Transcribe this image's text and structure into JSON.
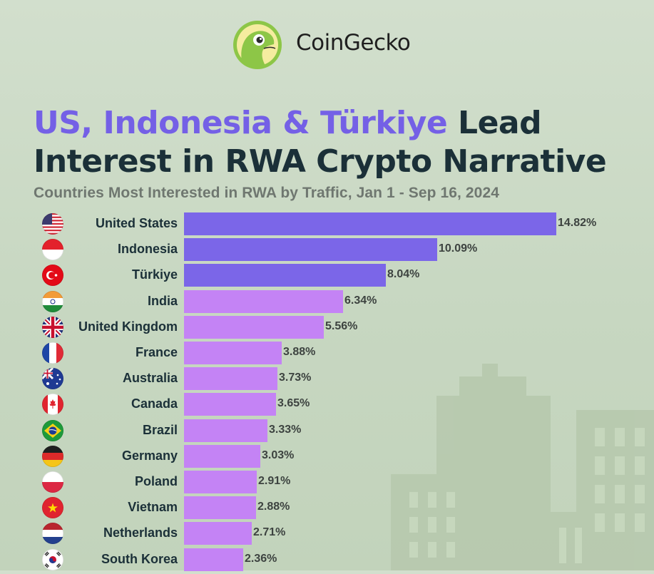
{
  "brand": {
    "name": "CoinGecko",
    "logo_icon": "gecko-logo-icon"
  },
  "title": {
    "highlight": "US, Indonesia & Türkiye",
    "rest_line1": " Lead",
    "line2": "Interest in RWA Crypto Narrative"
  },
  "subtitle": "Countries Most Interested in RWA by Traffic, Jan 1 - Sep 16, 2024",
  "colors": {
    "top3": "#7b66e8",
    "others": "#c483f5",
    "title_accent": "#7460e6",
    "title_dark": "#1b3038"
  },
  "chart_data": {
    "type": "bar",
    "orientation": "horizontal",
    "title": "US, Indonesia & Türkiye Lead Interest in RWA Crypto Narrative",
    "subtitle": "Countries Most Interested in RWA by Traffic, Jan 1 - Sep 16, 2024",
    "categories": [
      "United States",
      "Indonesia",
      "Türkiye",
      "India",
      "United Kingdom",
      "France",
      "Australia",
      "Canada",
      "Brazil",
      "Germany",
      "Poland",
      "Vietnam",
      "Netherlands",
      "South Korea"
    ],
    "values": [
      14.82,
      10.09,
      8.04,
      6.34,
      5.56,
      3.88,
      3.73,
      3.65,
      3.33,
      3.03,
      2.91,
      2.88,
      2.71,
      2.36
    ],
    "value_labels": [
      "14.82%",
      "10.09%",
      "8.04%",
      "6.34%",
      "5.56%",
      "3.88%",
      "3.73%",
      "3.65%",
      "3.33%",
      "3.03%",
      "2.91%",
      "2.88%",
      "2.71%",
      "2.36%"
    ],
    "flags": [
      "us-flag-icon",
      "indonesia-flag-icon",
      "turkiye-flag-icon",
      "india-flag-icon",
      "uk-flag-icon",
      "france-flag-icon",
      "australia-flag-icon",
      "canada-flag-icon",
      "brazil-flag-icon",
      "germany-flag-icon",
      "poland-flag-icon",
      "vietnam-flag-icon",
      "netherlands-flag-icon",
      "south-korea-flag-icon"
    ],
    "highlighted_count": 3,
    "unit": "%",
    "grid": false,
    "legend": "none"
  }
}
